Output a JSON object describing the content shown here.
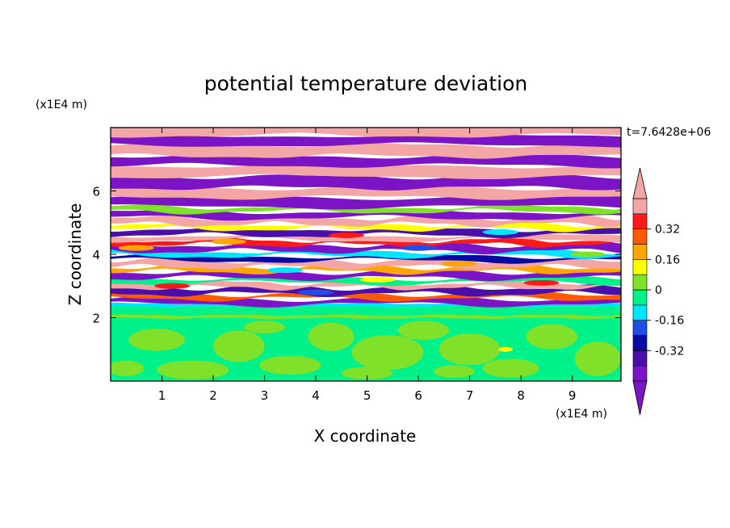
{
  "chart_data": {
    "type": "heatmap",
    "title": "potential temperature deviation",
    "xlabel": "X coordinate",
    "ylabel": "Z coordinate",
    "x_unit": "(x1E4 m)",
    "y_unit": "(x1E4 m)",
    "time_label": "t=7.6428e+06",
    "xlim": [
      0,
      9.95
    ],
    "ylim": [
      0,
      8.0
    ],
    "x_ticks": [
      1,
      2,
      3,
      4,
      5,
      6,
      7,
      8,
      9
    ],
    "y_ticks": [
      2,
      4,
      6
    ],
    "colorbar": {
      "levels": [
        -0.48,
        -0.4,
        -0.32,
        -0.24,
        -0.16,
        -0.08,
        0,
        0.08,
        0.16,
        0.24,
        0.32,
        0.4,
        0.48
      ],
      "colors": [
        "#7b14c4",
        "#4a0fa8",
        "#0a0aa0",
        "#1f4de6",
        "#00e5ff",
        "#00f08a",
        "#7fe12a",
        "#ffff00",
        "#ffa500",
        "#ff5a00",
        "#ff1a1a",
        "#f4a6a6"
      ],
      "tick_labels": [
        "0.32",
        "0.16",
        "0",
        "-0.16",
        "-0.32"
      ],
      "tick_values": [
        0.32,
        0.16,
        0,
        -0.16,
        -0.32
      ],
      "extend": "both"
    },
    "layers": [
      {
        "z_range": [
          0.0,
          2.0
        ],
        "description_values": [
          "0",
          "0.08"
        ]
      },
      {
        "z_range": [
          2.0,
          2.4
        ],
        "description_values": [
          "-0.08"
        ]
      },
      {
        "z_range": [
          2.4,
          5.5
        ],
        "description_values": [
          "-0.48",
          "0.48"
        ]
      },
      {
        "z_range": [
          5.5,
          8.0
        ],
        "description_values": [
          "-0.48",
          "0.48"
        ]
      }
    ]
  }
}
